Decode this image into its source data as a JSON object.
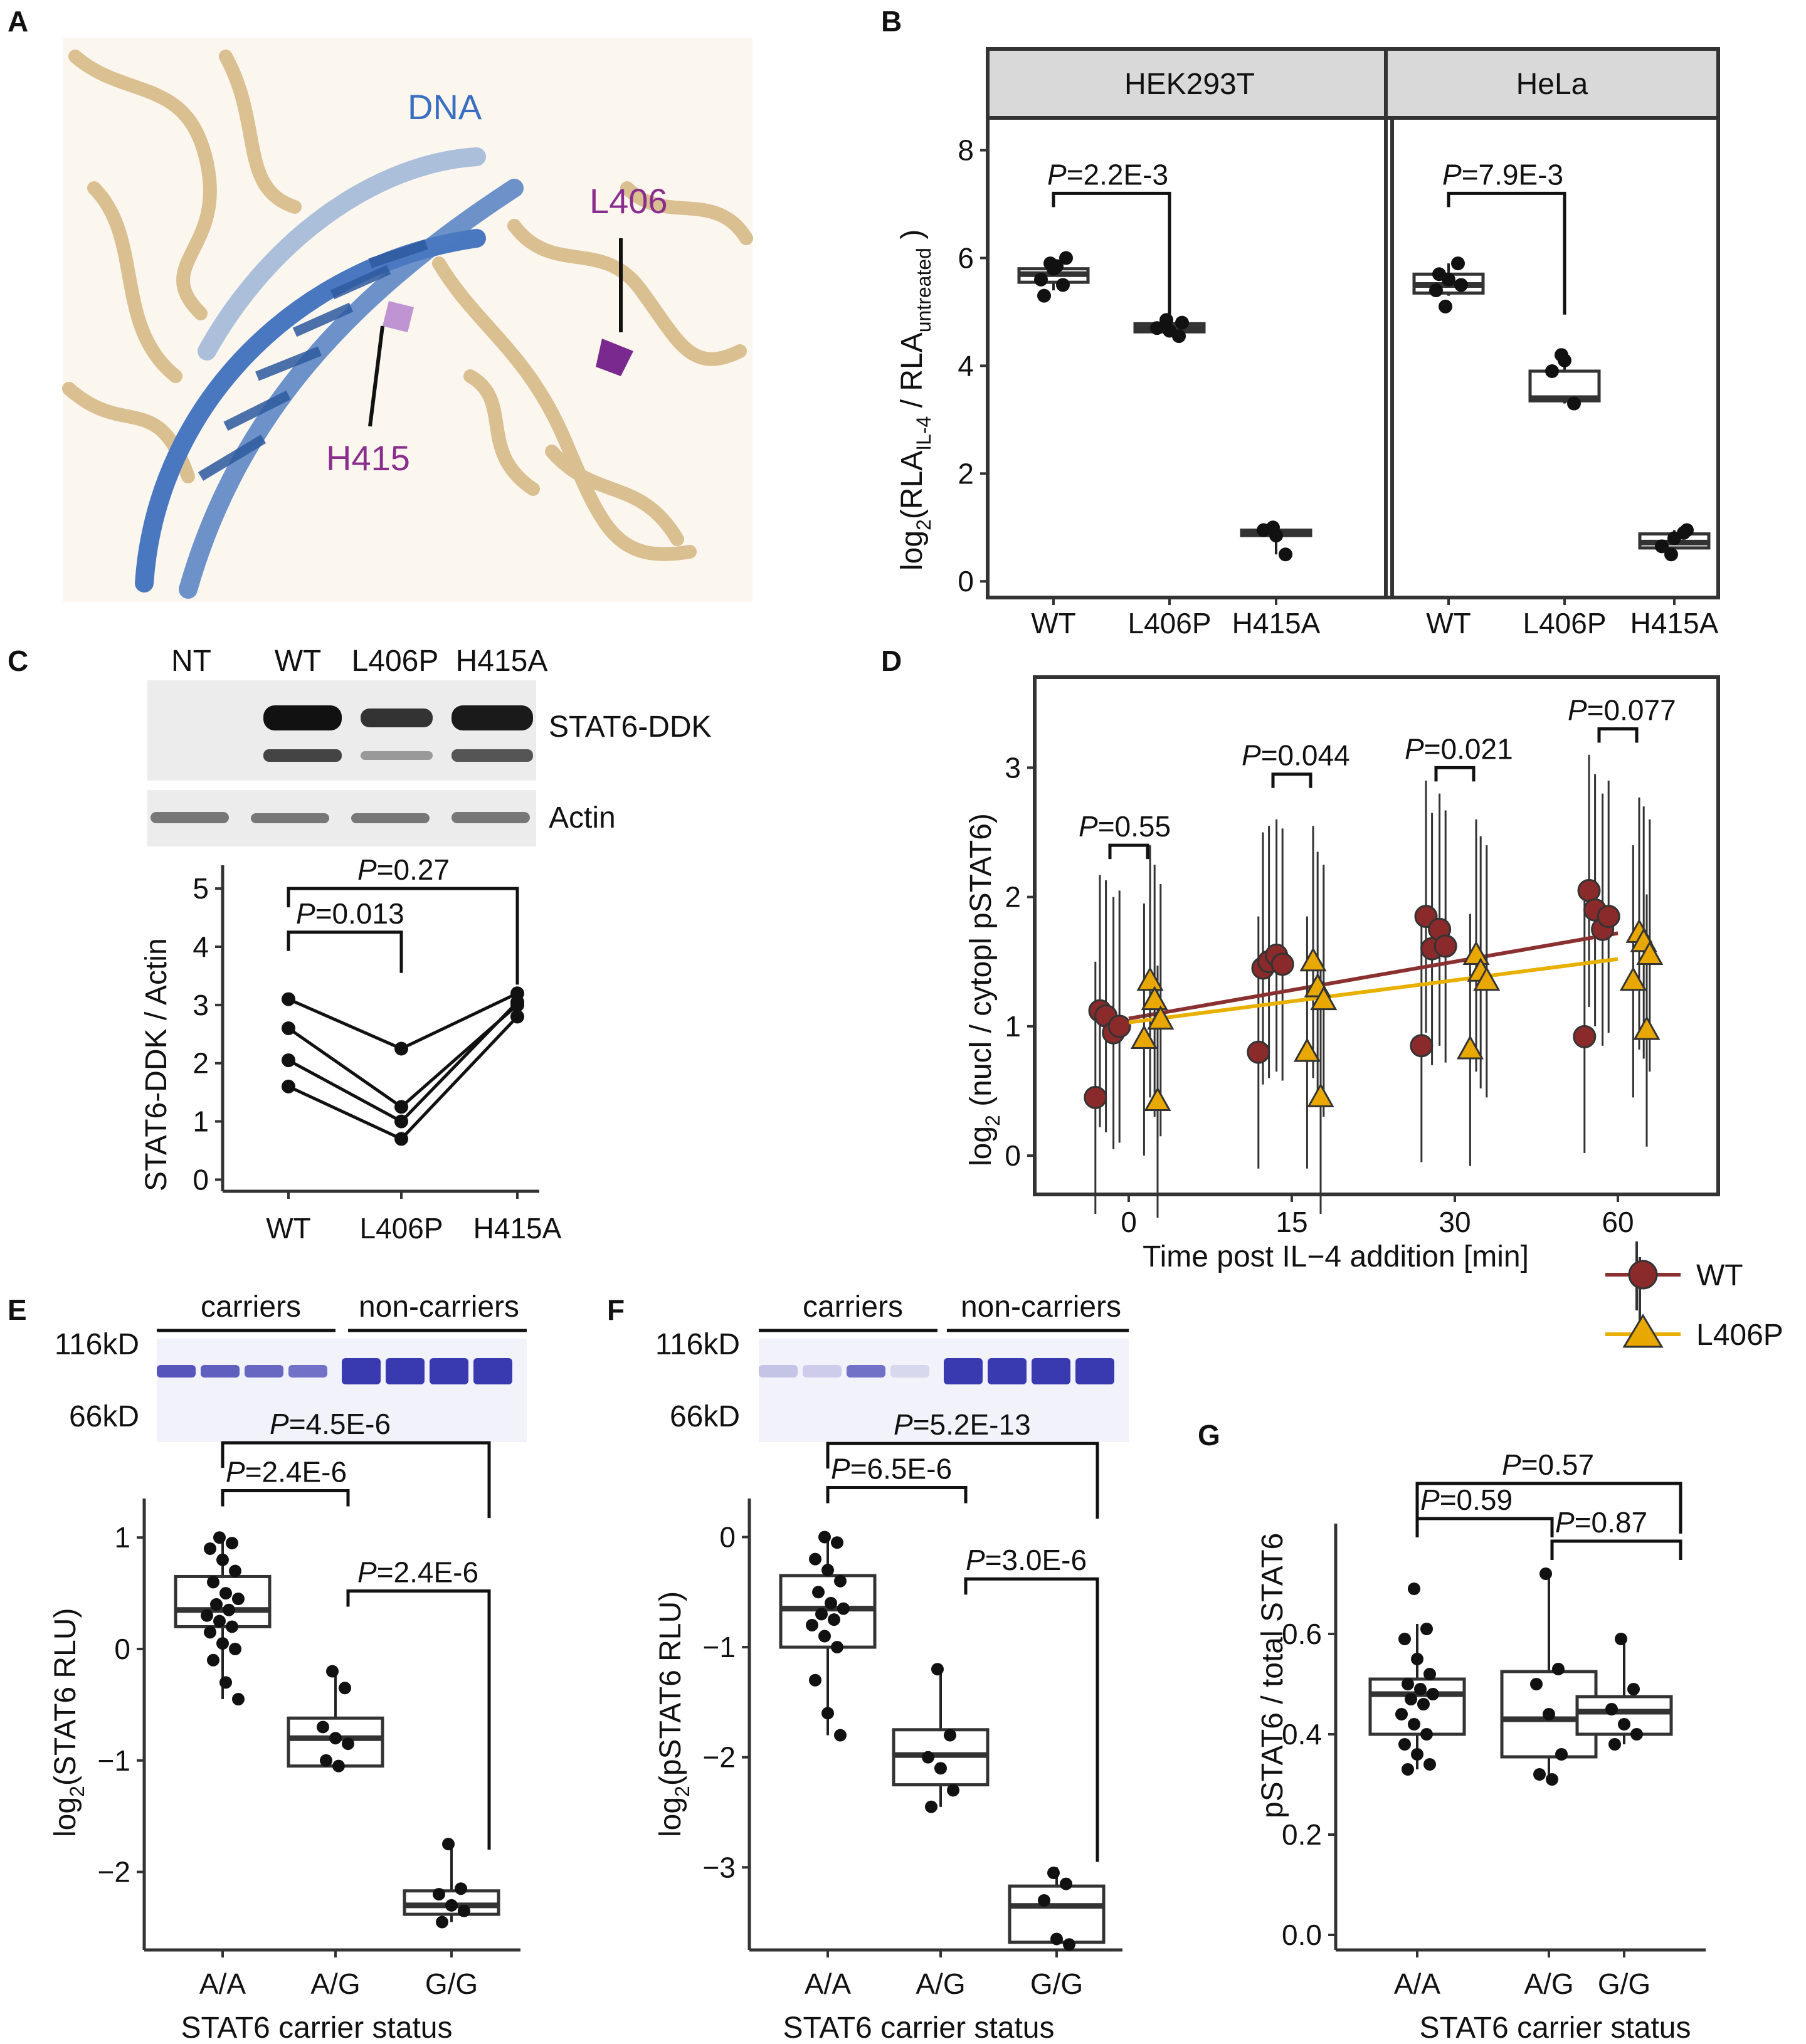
{
  "panel_labels": [
    "A",
    "B",
    "C",
    "D",
    "E",
    "F",
    "G"
  ],
  "structure": {
    "dna": "DNA",
    "l406": "L406",
    "h415": "H415"
  },
  "blot_c": {
    "lanes": [
      "NT",
      "WT",
      "L406P",
      "H415A"
    ],
    "band1": "STAT6-DDK",
    "band2": "Actin"
  },
  "gel_e": {
    "carriers": "carriers",
    "noncarriers": "non-carriers",
    "mw_high": "116kD",
    "mw_low": "66kD"
  },
  "gel_f": {
    "carriers": "carriers",
    "noncarriers": "non-carriers",
    "mw_high": "116kD",
    "mw_low": "66kD"
  },
  "legend_d": {
    "wt": "WT",
    "mut": "L406P"
  },
  "colors": {
    "wt": "#8B2A2A",
    "mut": "#E8A800",
    "wt_line": "#8B3030",
    "mut_line": "#E8B000",
    "dna": "#4A78C0",
    "protein": "#D9BD8C",
    "residue": "#8A2E8E",
    "gel": "#3A3AB0"
  },
  "chart_data": [
    {
      "id": "B",
      "type": "box",
      "facets": [
        "HEK293T",
        "HeLa"
      ],
      "categories": [
        "WT",
        "L406P",
        "H415A"
      ],
      "ylabel_main": "log",
      "ylabel_sub": "2",
      "ylabel_a": "(RLA",
      "ylabel_b": "IL-4",
      "ylabel_c": " / RLA",
      "ylabel_d": "untreated",
      "ylabel_e": " )",
      "ylim": [
        -0.3,
        8.6
      ],
      "yticks": [
        "0",
        "2",
        "4",
        "6",
        "8"
      ],
      "series": [
        {
          "boxes": [
            [
              5.4,
              5.55,
              5.7,
              5.8,
              5.95
            ],
            [
              4.6,
              4.63,
              4.7,
              4.78,
              4.85
            ],
            [
              0.5,
              0.85,
              0.9,
              0.95,
              1.0
            ]
          ],
          "points": [
            [
              5.9,
              5.5,
              5.6,
              5.8,
              6.0,
              5.3,
              5.85
            ],
            [
              4.85,
              4.55,
              4.7,
              4.65,
              4.8
            ],
            [
              1.0,
              0.5,
              0.95,
              0.85
            ]
          ]
        },
        {
          "boxes": [
            [
              5.3,
              5.35,
              5.5,
              5.7,
              5.9
            ],
            [
              3.3,
              3.35,
              3.4,
              3.9,
              4.2
            ],
            [
              0.6,
              0.62,
              0.72,
              0.88,
              0.95
            ]
          ],
          "points": [
            [
              5.1,
              5.9,
              5.4,
              5.6,
              5.5,
              5.7
            ],
            [
              4.2,
              3.3,
              3.9,
              4.1
            ],
            [
              0.5,
              0.9,
              0.65,
              0.8,
              0.95
            ]
          ]
        }
      ],
      "comparisons": [
        {
          "facet": 0,
          "text": "=2.2E-3",
          "y": 7.2
        },
        {
          "facet": 1,
          "text": "=7.9E-3",
          "y": 7.2
        }
      ]
    },
    {
      "id": "C",
      "type": "line",
      "categories": [
        "WT",
        "L406P",
        "H415A"
      ],
      "ylabel": "STAT6-DDK / Actin",
      "ylim": [
        -0.2,
        5.4
      ],
      "yticks": [
        "0",
        "1",
        "2",
        "3",
        "4",
        "5"
      ],
      "series": [
        {
          "values": [
            3.1,
            2.25,
            3.2
          ]
        },
        {
          "values": [
            2.6,
            1.25,
            3.0
          ]
        },
        {
          "values": [
            2.05,
            1.0,
            3.05
          ]
        },
        {
          "values": [
            1.6,
            0.7,
            2.8
          ]
        }
      ],
      "comparisons": [
        {
          "text": "=0.013",
          "y": 4.25
        },
        {
          "text": "=0.27",
          "y": 5.0
        }
      ]
    },
    {
      "id": "D",
      "type": "scatter",
      "x": [
        0,
        15,
        30,
        60
      ],
      "xticks": [
        "0",
        "15",
        "30",
        "60"
      ],
      "xlabel": "Time post IL−4 addition [min]",
      "ylabel_main": "log",
      "ylabel_sub": "2",
      "ylabel_rest": " (nucl / cytopl pSTAT6)",
      "ylim": [
        -0.3,
        3.7
      ],
      "yticks": [
        "0",
        "1",
        "2",
        "3"
      ],
      "series": [
        {
          "name": "WT",
          "points": [
            [
              1.12,
              1.08,
              0.95,
              0.45,
              1.0
            ],
            [
              1.45,
              1.5,
              1.55,
              0.8,
              1.48
            ],
            [
              1.85,
              1.6,
              1.75,
              0.85,
              1.62
            ],
            [
              2.05,
              1.9,
              1.75,
              0.92,
              1.85
            ]
          ],
          "fit": [
            1.06,
            1.72
          ]
        },
        {
          "name": "L406P",
          "points": [
            [
              1.35,
              1.2,
              1.05,
              0.9,
              0.42
            ],
            [
              1.5,
              1.3,
              1.2,
              0.8,
              0.45
            ],
            [
              1.55,
              1.42,
              1.35,
              0.82
            ],
            [
              1.72,
              1.65,
              1.55,
              1.35,
              0.97
            ]
          ],
          "fit": [
            1.03,
            1.52
          ]
        }
      ],
      "comparisons": [
        {
          "text": "=0.55",
          "y": 2.4
        },
        {
          "text": "=0.044",
          "y": 2.95
        },
        {
          "text": "=0.021",
          "y": 3.0
        },
        {
          "text": "=0.077",
          "y": 3.3
        }
      ]
    },
    {
      "id": "E",
      "type": "box",
      "categories": [
        "A/A",
        "A/G",
        "G/G"
      ],
      "xlabel": "STAT6 carrier status",
      "ylabel_main": "log",
      "ylabel_sub": "2",
      "ylabel_rest": "(STAT6 RLU)",
      "ylim": [
        -2.7,
        1.35
      ],
      "yticks": [
        "-2",
        "-1",
        "0",
        "1"
      ],
      "boxes": [
        [
          -0.45,
          0.2,
          0.35,
          0.65,
          1.0
        ],
        [
          -1.05,
          -1.05,
          -0.8,
          -0.62,
          -0.2
        ],
        [
          -2.45,
          -2.38,
          -2.3,
          -2.17,
          -1.75
        ]
      ],
      "points": [
        [
          1.0,
          0.95,
          0.9,
          0.8,
          0.7,
          0.6,
          0.5,
          0.45,
          0.4,
          0.35,
          0.3,
          0.25,
          0.2,
          0.15,
          0.05,
          0.0,
          -0.1,
          -0.3,
          -0.45
        ],
        [
          -0.2,
          -0.35,
          -0.7,
          -0.8,
          -0.85,
          -1.0,
          -1.05
        ],
        [
          -1.75,
          -2.15,
          -2.2,
          -2.3,
          -2.35,
          -2.45
        ]
      ],
      "comparisons": [
        {
          "text": "=2.4E-6",
          "y": 1.42
        },
        {
          "text": "=2.4E-6",
          "y": 0.52
        },
        {
          "text": "=4.5E-6",
          "y": 1.85
        }
      ]
    },
    {
      "id": "F",
      "type": "box",
      "categories": [
        "A/A",
        "A/G",
        "G/G"
      ],
      "xlabel": "STAT6 carrier status",
      "ylabel_main": "log",
      "ylabel_sub": "2",
      "ylabel_rest": "(pSTAT6 RLU)",
      "ylim": [
        -3.75,
        0.35
      ],
      "yticks": [
        "-3",
        "-2",
        "-1",
        "0"
      ],
      "boxes": [
        [
          -1.8,
          -1.0,
          -0.65,
          -0.35,
          0.0
        ],
        [
          -2.45,
          -2.25,
          -1.98,
          -1.75,
          -1.2
        ],
        [
          -3.7,
          -3.68,
          -3.35,
          -3.17,
          -3.0
        ]
      ],
      "points": [
        [
          0.0,
          -0.05,
          -0.2,
          -0.3,
          -0.4,
          -0.5,
          -0.6,
          -0.65,
          -0.7,
          -0.75,
          -0.8,
          -0.9,
          -1.0,
          -1.3,
          -1.6,
          -1.8
        ],
        [
          -1.2,
          -1.8,
          -2.0,
          -2.1,
          -2.3,
          -2.45
        ],
        [
          -3.05,
          -3.15,
          -3.3,
          -3.65,
          -3.7
        ]
      ],
      "comparisons": [
        {
          "text": "=6.5E-6",
          "y": 0.45
        },
        {
          "text": "=3.0E-6",
          "y": -0.38
        },
        {
          "text": "=5.2E-13",
          "y": 0.85
        }
      ]
    },
    {
      "id": "G",
      "type": "box",
      "categories": [
        "A/A",
        "A/G",
        "G/G"
      ],
      "xlabel": "STAT6 carrier status",
      "ylabel": "pSTAT6 / total STAT6",
      "ylim": [
        -0.03,
        0.82
      ],
      "yticks": [
        "0.0",
        "0.2",
        "0.4",
        "0.6"
      ],
      "boxes": [
        [
          0.33,
          0.4,
          0.48,
          0.51,
          0.62
        ],
        [
          0.31,
          0.355,
          0.43,
          0.525,
          0.72
        ],
        [
          0.38,
          0.4,
          0.445,
          0.475,
          0.59
        ]
      ],
      "points": [
        [
          0.69,
          0.61,
          0.59,
          0.55,
          0.52,
          0.5,
          0.49,
          0.48,
          0.47,
          0.46,
          0.44,
          0.42,
          0.4,
          0.38,
          0.36,
          0.34,
          0.33
        ],
        [
          0.72,
          0.53,
          0.5,
          0.44,
          0.36,
          0.32,
          0.31
        ],
        [
          0.59,
          0.49,
          0.45,
          0.42,
          0.4,
          0.38
        ]
      ],
      "comparisons": [
        {
          "text": "=0.59",
          "y": 0.83
        },
        {
          "text": "=0.87",
          "y": 0.785
        },
        {
          "text": "=0.57",
          "y": 0.9
        }
      ]
    }
  ]
}
